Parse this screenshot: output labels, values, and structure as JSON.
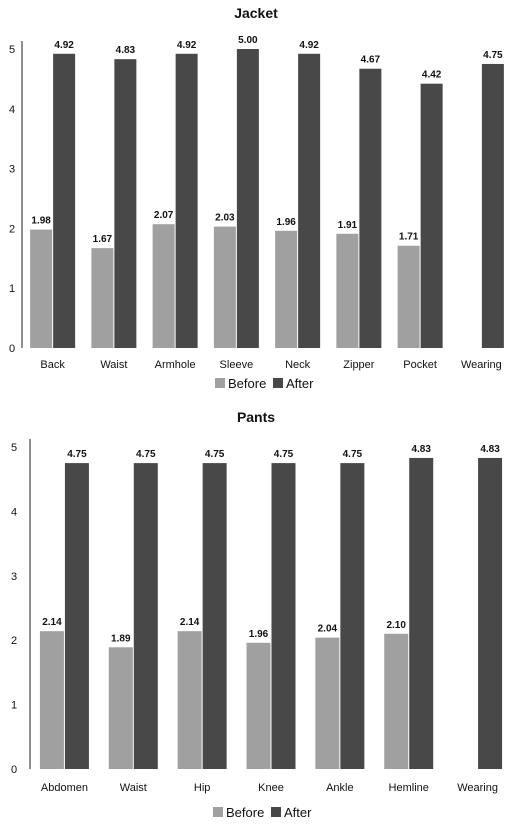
{
  "chart_data": [
    {
      "type": "bar",
      "title": "Jacket",
      "categories": [
        "Back",
        "Waist",
        "Armhole",
        "Sleeve",
        "Neck",
        "Zipper",
        "Pocket",
        "Wearing"
      ],
      "series": [
        {
          "name": "Before",
          "color": "#a0a0a0",
          "values": [
            1.98,
            1.67,
            2.07,
            2.03,
            1.96,
            1.91,
            1.71,
            null
          ]
        },
        {
          "name": "After",
          "color": "#484848",
          "values": [
            4.92,
            4.83,
            4.92,
            5.0,
            4.92,
            4.67,
            4.42,
            4.75
          ]
        }
      ],
      "ylim": [
        0,
        5
      ],
      "yticks": [
        "0",
        "1",
        "2",
        "3",
        "4",
        "5"
      ],
      "grid": false,
      "legend": "bottom"
    },
    {
      "type": "bar",
      "title": "Pants",
      "categories": [
        "Abdomen",
        "Waist",
        "Hip",
        "Knee",
        "Ankle",
        "Hemline",
        "Wearing"
      ],
      "series": [
        {
          "name": "Before",
          "color": "#a0a0a0",
          "values": [
            2.14,
            1.89,
            2.14,
            1.96,
            2.04,
            2.1,
            null
          ]
        },
        {
          "name": "After",
          "color": "#484848",
          "values": [
            4.75,
            4.75,
            4.75,
            4.75,
            4.75,
            4.83,
            4.83
          ]
        }
      ],
      "ylim": [
        0,
        5
      ],
      "yticks": [
        "0",
        "1",
        "2",
        "3",
        "4",
        "5"
      ],
      "grid": false,
      "legend": "bottom"
    }
  ]
}
